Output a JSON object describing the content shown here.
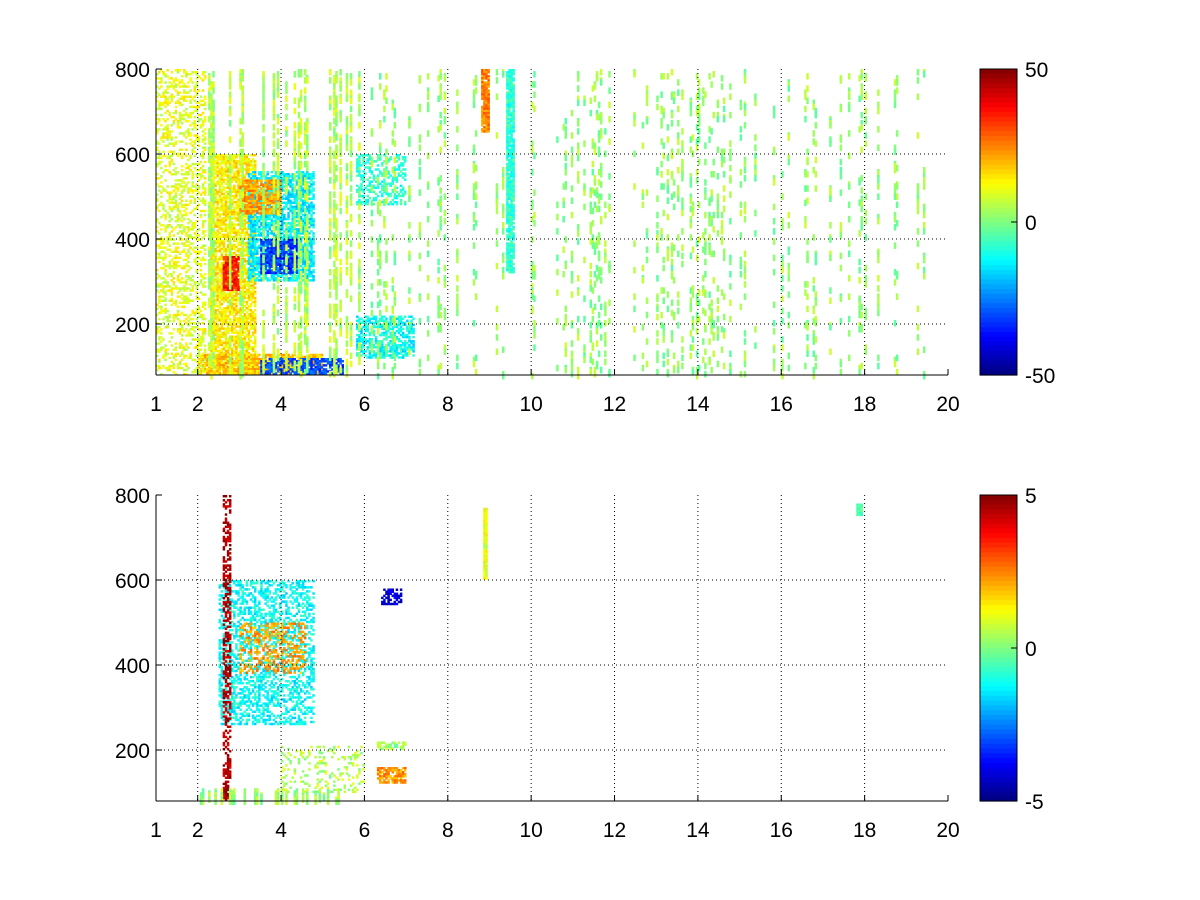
{
  "chart_data": [
    {
      "type": "heatmap",
      "title": "",
      "xlabel": "",
      "ylabel": "",
      "xlim": [
        1,
        20
      ],
      "ylim": [
        80,
        800
      ],
      "x_ticks": [
        "1",
        "2",
        "4",
        "6",
        "8",
        "10",
        "12",
        "14",
        "16",
        "18",
        "20"
      ],
      "y_ticks": [
        "200",
        "400",
        "600",
        "800"
      ],
      "grid": "dotted",
      "colormap": "jet",
      "colorbar": {
        "min": -50,
        "max": 50,
        "tick_labels": [
          "50",
          "0",
          "-50"
        ],
        "position": "right"
      },
      "regions": [
        {
          "x": [
            2.3,
            3.4
          ],
          "y": [
            80,
            600
          ],
          "value": 14,
          "density": 0.75
        },
        {
          "x": [
            3.2,
            4.8
          ],
          "y": [
            300,
            560
          ],
          "value": -14,
          "density": 0.7
        },
        {
          "x": [
            2.6,
            3.0
          ],
          "y": [
            280,
            360
          ],
          "value": 35,
          "density": 0.9
        },
        {
          "x": [
            3.5,
            4.4
          ],
          "y": [
            320,
            400
          ],
          "value": -32,
          "density": 0.85
        },
        {
          "x": [
            3.0,
            4.0
          ],
          "y": [
            460,
            540
          ],
          "value": 22,
          "density": 0.8
        },
        {
          "x": [
            2.0,
            5.0
          ],
          "y": [
            80,
            130
          ],
          "value": 18,
          "density": 0.8
        },
        {
          "x": [
            3.5,
            5.5
          ],
          "y": [
            80,
            120
          ],
          "value": -30,
          "density": 0.7
        },
        {
          "x": [
            5.8,
            7.2
          ],
          "y": [
            120,
            220
          ],
          "value": -12,
          "density": 0.6
        },
        {
          "x": [
            1.0,
            2.2
          ],
          "y": [
            80,
            800
          ],
          "value": 10,
          "density": 0.35
        },
        {
          "x": [
            2.2,
            6.0
          ],
          "y": [
            80,
            800
          ],
          "value": 5,
          "density": 0.3
        },
        {
          "x": [
            5.8,
            7.0
          ],
          "y": [
            480,
            600
          ],
          "value": -8,
          "density": 0.4
        },
        {
          "x": [
            8.8,
            9.0
          ],
          "y": [
            650,
            800
          ],
          "value": 25,
          "density": 0.95
        },
        {
          "x": [
            9.4,
            9.6
          ],
          "y": [
            320,
            800
          ],
          "value": -8,
          "density": 0.9
        },
        {
          "x": [
            6.0,
            20.0
          ],
          "y": [
            80,
            800
          ],
          "value": 2,
          "density": 0.12
        }
      ]
    },
    {
      "type": "heatmap",
      "title": "",
      "xlabel": "",
      "ylabel": "",
      "xlim": [
        1,
        20
      ],
      "ylim": [
        80,
        800
      ],
      "x_ticks": [
        "1",
        "2",
        "4",
        "6",
        "8",
        "10",
        "12",
        "14",
        "16",
        "18",
        "20"
      ],
      "y_ticks": [
        "200",
        "400",
        "600",
        "800"
      ],
      "grid": "dotted",
      "colormap": "jet",
      "colorbar": {
        "min": -5,
        "max": 5,
        "tick_labels": [
          "5",
          "0",
          "-5"
        ],
        "position": "right"
      },
      "regions": [
        {
          "x": [
            2.5,
            4.8
          ],
          "y": [
            260,
            600
          ],
          "value": -1.2,
          "density": 0.45
        },
        {
          "x": [
            2.6,
            2.8
          ],
          "y": [
            80,
            800
          ],
          "value": 4.5,
          "density": 0.5
        },
        {
          "x": [
            3.0,
            4.6
          ],
          "y": [
            380,
            500
          ],
          "value": 2.2,
          "density": 0.35
        },
        {
          "x": [
            2.0,
            5.5
          ],
          "y": [
            80,
            110
          ],
          "value": 0.3,
          "density": 0.7
        },
        {
          "x": [
            4.0,
            6.0
          ],
          "y": [
            100,
            210
          ],
          "value": 0.5,
          "density": 0.2
        },
        {
          "x": [
            6.3,
            7.0
          ],
          "y": [
            120,
            160
          ],
          "value": 2.3,
          "density": 0.75
        },
        {
          "x": [
            6.3,
            7.0
          ],
          "y": [
            200,
            220
          ],
          "value": 0.3,
          "density": 0.6
        },
        {
          "x": [
            6.4,
            6.9
          ],
          "y": [
            540,
            580
          ],
          "value": -4.2,
          "density": 0.6
        },
        {
          "x": [
            8.85,
            8.95
          ],
          "y": [
            600,
            770
          ],
          "value": 1.0,
          "density": 1.0
        },
        {
          "x": [
            17.8,
            17.95
          ],
          "y": [
            750,
            780
          ],
          "value": -0.4,
          "density": 1.0
        }
      ]
    }
  ]
}
